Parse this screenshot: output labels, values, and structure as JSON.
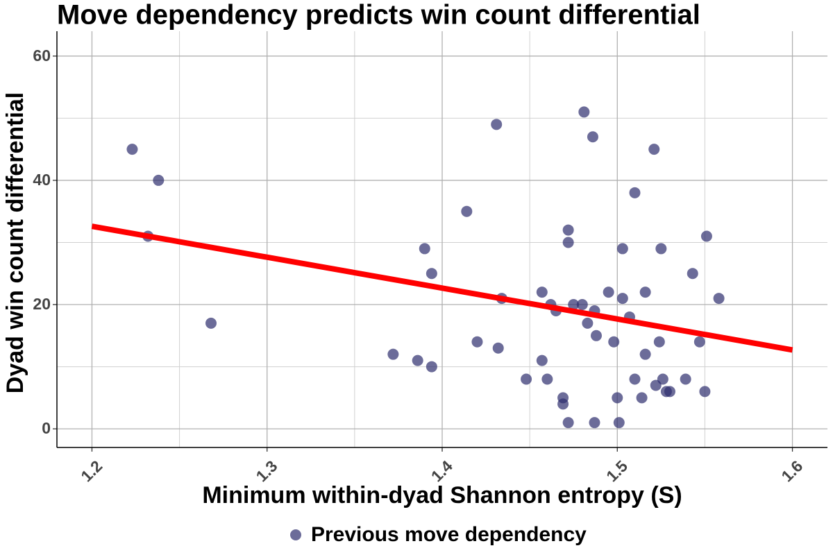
{
  "chart_data": {
    "type": "scatter",
    "title": "Move dependency predicts win count differential",
    "x_label": "Minimum within-dyad Shannon entropy (S)",
    "y_label": "Dyad win count differential",
    "xlim": [
      1.18,
      1.62
    ],
    "ylim": [
      -3,
      64
    ],
    "xticks": [
      1.2,
      1.3,
      1.4,
      1.5,
      1.6
    ],
    "yticks": [
      0,
      20,
      40,
      60
    ],
    "grid": true,
    "legend": "bottom",
    "series": [
      {
        "name": "Previous move dependency",
        "color": "#2e2e6e",
        "x": [
          1.223,
          1.238,
          1.232,
          1.268,
          1.372,
          1.386,
          1.394,
          1.39,
          1.394,
          1.414,
          1.42,
          1.431,
          1.432,
          1.434,
          1.448,
          1.457,
          1.457,
          1.46,
          1.462,
          1.465,
          1.469,
          1.469,
          1.472,
          1.472,
          1.472,
          1.475,
          1.48,
          1.481,
          1.483,
          1.486,
          1.487,
          1.488,
          1.487,
          1.495,
          1.498,
          1.5,
          1.501,
          1.503,
          1.503,
          1.507,
          1.51,
          1.51,
          1.514,
          1.516,
          1.516,
          1.521,
          1.522,
          1.525,
          1.524,
          1.526,
          1.528,
          1.53,
          1.539,
          1.543,
          1.547,
          1.55,
          1.551,
          1.558
        ],
        "values": [
          45,
          40,
          31,
          17,
          12,
          11,
          10,
          29,
          25,
          35,
          14,
          49,
          13,
          21,
          8,
          22,
          11,
          8,
          20,
          19,
          5,
          4,
          32,
          30,
          1,
          20,
          20,
          51,
          17,
          47,
          19,
          15,
          1,
          22,
          14,
          5,
          1,
          29,
          21,
          18,
          38,
          8,
          5,
          12,
          22,
          45,
          7,
          29,
          14,
          8,
          6,
          6,
          8,
          25,
          14,
          6,
          31,
          21
        ]
      }
    ],
    "trend": {
      "color": "#ff0000",
      "x": [
        1.2,
        1.6
      ],
      "values": [
        32.6,
        12.7
      ]
    }
  }
}
